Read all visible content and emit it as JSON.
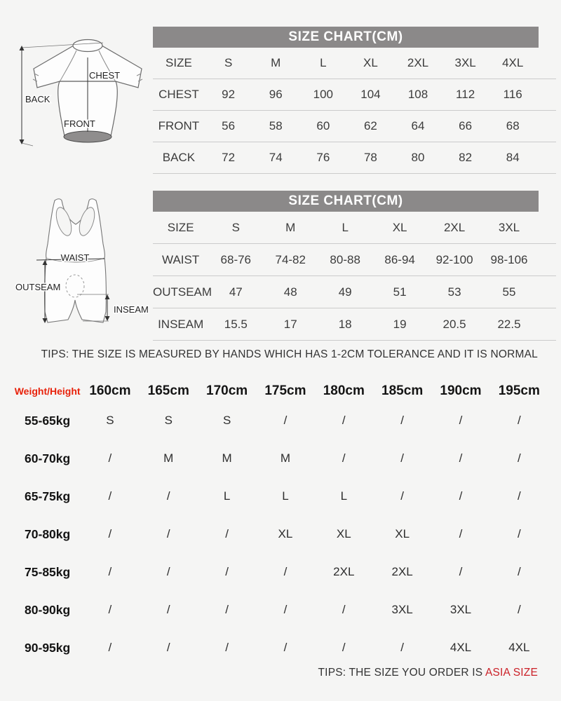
{
  "colors": {
    "background": "#f5f5f4",
    "header_bar": "#8b8989",
    "row_line": "#cbcbcb",
    "weight_height_red": "#e8220b",
    "asia_size_red": "#cb2128"
  },
  "jersey_diagram": {
    "labels": {
      "back": "BACK",
      "chest": "CHEST",
      "front": "FRONT"
    }
  },
  "bib_diagram": {
    "labels": {
      "waist": "WAIST",
      "outseam": "OUTSEAM",
      "inseam": "INSEAM"
    }
  },
  "jersey_chart": {
    "title": "SIZE CHART(CM)",
    "columns": [
      "SIZE",
      "S",
      "M",
      "L",
      "XL",
      "2XL",
      "3XL",
      "4XL"
    ],
    "rows": [
      {
        "label": "CHEST",
        "values": [
          "92",
          "96",
          "100",
          "104",
          "108",
          "112",
          "116"
        ]
      },
      {
        "label": "FRONT",
        "values": [
          "56",
          "58",
          "60",
          "62",
          "64",
          "66",
          "68"
        ]
      },
      {
        "label": "BACK",
        "values": [
          "72",
          "74",
          "76",
          "78",
          "80",
          "82",
          "84"
        ]
      }
    ]
  },
  "bib_chart": {
    "title": "SIZE CHART(CM)",
    "columns": [
      "SIZE",
      "S",
      "M",
      "L",
      "XL",
      "2XL",
      "3XL"
    ],
    "rows": [
      {
        "label": "WAIST",
        "values": [
          "68-76",
          "74-82",
          "80-88",
          "86-94",
          "92-100",
          "98-106"
        ]
      },
      {
        "label": "OUTSEAM",
        "values": [
          "47",
          "48",
          "49",
          "51",
          "53",
          "55"
        ]
      },
      {
        "label": "INSEAM",
        "values": [
          "15.5",
          "17",
          "18",
          "19",
          "20.5",
          "22.5"
        ]
      }
    ]
  },
  "tips_measure": "TIPS: THE SIZE IS MEASURED BY HANDS WHICH HAS 1-2CM TOLERANCE AND IT IS NORMAL",
  "fit_chart": {
    "corner_label": "Weight/Height",
    "columns": [
      "160cm",
      "165cm",
      "170cm",
      "175cm",
      "180cm",
      "185cm",
      "190cm",
      "195cm"
    ],
    "rows": [
      {
        "label": "55-65kg",
        "values": [
          "S",
          "S",
          "S",
          "/",
          "/",
          "/",
          "/",
          "/"
        ]
      },
      {
        "label": "60-70kg",
        "values": [
          "/",
          "M",
          "M",
          "M",
          "/",
          "/",
          "/",
          "/"
        ]
      },
      {
        "label": "65-75kg",
        "values": [
          "/",
          "/",
          "L",
          "L",
          "L",
          "/",
          "/",
          "/"
        ]
      },
      {
        "label": "70-80kg",
        "values": [
          "/",
          "/",
          "/",
          "XL",
          "XL",
          "XL",
          "/",
          "/"
        ]
      },
      {
        "label": "75-85kg",
        "values": [
          "/",
          "/",
          "/",
          "/",
          "2XL",
          "2XL",
          "/",
          "/"
        ]
      },
      {
        "label": "80-90kg",
        "values": [
          "/",
          "/",
          "/",
          "/",
          "/",
          "3XL",
          "3XL",
          "/"
        ]
      },
      {
        "label": "90-95kg",
        "values": [
          "/",
          "/",
          "/",
          "/",
          "/",
          "/",
          "4XL",
          "4XL"
        ]
      }
    ]
  },
  "tips_order": {
    "prefix": "TIPS: THE SIZE YOU ORDER IS ",
    "highlight": "ASIA SIZE"
  }
}
